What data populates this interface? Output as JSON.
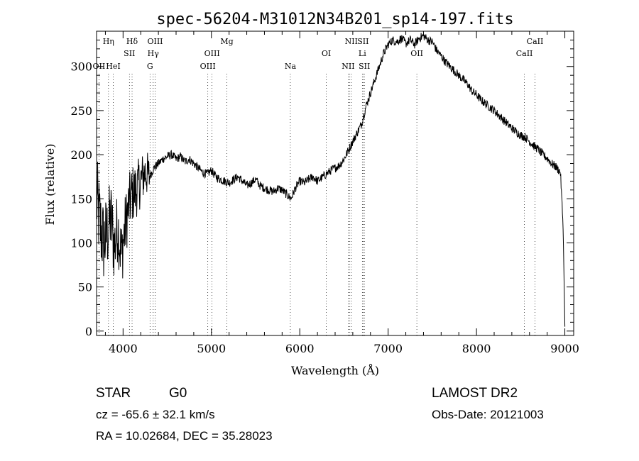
{
  "chart_data": {
    "type": "line",
    "title": "spec-56204-M31012N34B201_sp14-197.fits",
    "xlabel": "Wavelength (Å)",
    "ylabel": "Flux (relative)",
    "xlim": [
      3700,
      9100
    ],
    "ylim": [
      -5,
      340
    ],
    "xticks": [
      4000,
      5000,
      6000,
      7000,
      8000,
      9000
    ],
    "yticks": [
      0,
      50,
      100,
      150,
      200,
      250,
      300
    ],
    "grid": false,
    "series": [
      {
        "x": [
          3700,
          3740,
          3780,
          3820,
          3860,
          3900,
          3940,
          3980,
          4020,
          4060,
          4100,
          4150,
          4200,
          4250,
          4300,
          4350,
          4400,
          4450,
          4500,
          4550,
          4600,
          4650,
          4700,
          4750,
          4800,
          4850,
          4900,
          4950,
          5000,
          5050,
          5100,
          5150,
          5200,
          5250,
          5300,
          5350,
          5400,
          5450,
          5500,
          5550,
          5600,
          5650,
          5700,
          5750,
          5800,
          5850,
          5900,
          5950,
          6000,
          6050,
          6100,
          6150,
          6200,
          6250,
          6300,
          6350,
          6400,
          6450,
          6500,
          6550,
          6600,
          6650,
          6700,
          6750,
          6800,
          6850,
          6900,
          6950,
          7000,
          7050,
          7100,
          7150,
          7200,
          7250,
          7300,
          7350,
          7400,
          7450,
          7500,
          7550,
          7600,
          7650,
          7700,
          7750,
          7800,
          7850,
          7900,
          7950,
          8000,
          8050,
          8100,
          8150,
          8200,
          8250,
          8300,
          8350,
          8400,
          8450,
          8500,
          8550,
          8600,
          8650,
          8700,
          8750,
          8800,
          8850,
          8900,
          8950,
          8980,
          9000
        ],
        "values": [
          150,
          120,
          100,
          110,
          130,
          95,
          120,
          85,
          115,
          140,
          155,
          160,
          170,
          180,
          175,
          185,
          190,
          195,
          198,
          200,
          195,
          198,
          192,
          195,
          190,
          185,
          180,
          178,
          182,
          175,
          172,
          170,
          168,
          172,
          175,
          170,
          165,
          168,
          172,
          165,
          162,
          160,
          158,
          162,
          160,
          155,
          150,
          162,
          170,
          168,
          172,
          175,
          170,
          174,
          178,
          182,
          185,
          188,
          195,
          205,
          215,
          225,
          235,
          255,
          270,
          285,
          300,
          315,
          325,
          330,
          328,
          332,
          326,
          330,
          325,
          332,
          335,
          330,
          328,
          318,
          312,
          305,
          300,
          295,
          290,
          285,
          280,
          272,
          268,
          262,
          258,
          254,
          250,
          245,
          240,
          235,
          230,
          226,
          222,
          220,
          215,
          210,
          206,
          200,
          196,
          190,
          186,
          180,
          120,
          5
        ]
      }
    ],
    "emission_lines": [
      {
        "label": "Hη",
        "x": 3835,
        "row": 0
      },
      {
        "label": "OII",
        "x": 3727,
        "row": 2
      },
      {
        "label": "HeI",
        "x": 3889,
        "row": 2
      },
      {
        "label": "Hδ",
        "x": 4102,
        "row": 0
      },
      {
        "label": "SII",
        "x": 4072,
        "row": 1
      },
      {
        "label": "OIII",
        "x": 4363,
        "row": 0
      },
      {
        "label": "Hγ",
        "x": 4341,
        "row": 1
      },
      {
        "label": "G",
        "x": 4305,
        "row": 2
      },
      {
        "label": "Mg",
        "x": 5175,
        "row": 0
      },
      {
        "label": "OIII",
        "x": 5007,
        "row": 1
      },
      {
        "label": "OIII",
        "x": 4959,
        "row": 2
      },
      {
        "label": "Na",
        "x": 5893,
        "row": 2
      },
      {
        "label": "OI",
        "x": 6300,
        "row": 1
      },
      {
        "label": "NII",
        "x": 6583,
        "row": 0
      },
      {
        "label": "SII",
        "x": 6716,
        "row": 0
      },
      {
        "label": "Li",
        "x": 6708,
        "row": 1
      },
      {
        "label": "NII",
        "x": 6548,
        "row": 2
      },
      {
        "label": "SII",
        "x": 6731,
        "row": 2
      },
      {
        "label": "OII",
        "x": 7325,
        "row": 1
      },
      {
        "label": "CaII",
        "x": 8662,
        "row": 0
      },
      {
        "label": "CaII",
        "x": 8542,
        "row": 1
      }
    ],
    "line_marker_x": [
      3727,
      3835,
      3889,
      4072,
      4102,
      4305,
      4341,
      4363,
      4959,
      5007,
      5175,
      5893,
      6300,
      6548,
      6563,
      6583,
      6708,
      6716,
      6731,
      7325,
      8542,
      8662
    ]
  },
  "info": {
    "object_class": "STAR",
    "subclass": "G0",
    "survey": "LAMOST DR2",
    "redshift": "cz = -65.6 ± 32.1 km/s",
    "obs_date": "Obs-Date: 20121003",
    "coords": "RA =  10.02684, DEC =  35.28023"
  }
}
